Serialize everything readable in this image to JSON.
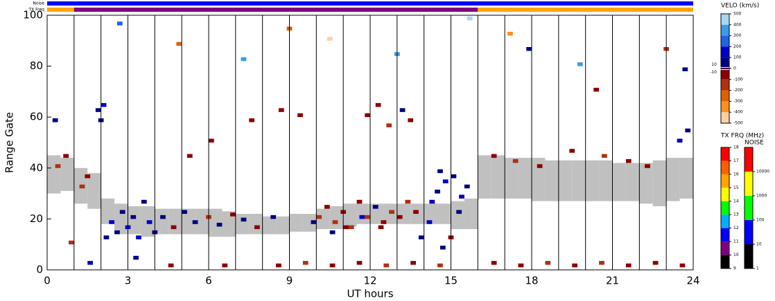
{
  "chart_data": {
    "type": "heatmap",
    "xlabel": "UT hours",
    "ylabel": "Range Gate",
    "xlim": [
      0,
      24
    ],
    "ylim": [
      0,
      100
    ],
    "xticks": [
      0,
      3,
      6,
      9,
      12,
      15,
      18,
      21,
      24
    ],
    "yticks": [
      0,
      20,
      40,
      60,
      80,
      100
    ],
    "xgrid": [
      1,
      2,
      3,
      4,
      5,
      6,
      7,
      8,
      9,
      10,
      11,
      12,
      13,
      14,
      15,
      16,
      17,
      18,
      19,
      20,
      21,
      22,
      23
    ],
    "cells": {
      "x": [
        2.1,
        2.3,
        2.5,
        2.7,
        2.9,
        3.1,
        3.3,
        3.5,
        3.7,
        3.9,
        4.2,
        4.6,
        5.0,
        5.4,
        5.9,
        6.3,
        6.8,
        7.2,
        7.7,
        8.3,
        10.0,
        10.3,
        10.6,
        10.9,
        11.2,
        11.5,
        11.8,
        12.1,
        12.4,
        12.7,
        13.0,
        13.3,
        13.6,
        9.8,
        10.5,
        11.0,
        11.6,
        12.3,
        13.8,
        14.1,
        14.4,
        14.7,
        15.0,
        15.3,
        15.5,
        14.6,
        14.9,
        14.2,
        14.5,
        15.2,
        8.5,
        9.5,
        10.5,
        11.5,
        12.5,
        13.5,
        14.5,
        16.5,
        17.5,
        18.5,
        19.5,
        20.5,
        21.5,
        22.5,
        23.5,
        4.5,
        6.5,
        1.5,
        0.8,
        3.2,
        1.8,
        1.9,
        2.0,
        11.8,
        12.2,
        12.6,
        13.1,
        13.4,
        23.4,
        23.7,
        0.3,
        0.6,
        1.2,
        1.4,
        0.2,
        5.2,
        6.0,
        7.5,
        8.6,
        9.3,
        16.5,
        17.3,
        18.2,
        19.4,
        20.6,
        21.5,
        22.2,
        23.6,
        20.3,
        17.8,
        2.6,
        4.8,
        7.2,
        8.9,
        10.4,
        12.9,
        15.6,
        17.1,
        19.7,
        22.9
      ],
      "y": [
        12,
        18,
        14,
        22,
        16,
        20,
        12,
        26,
        18,
        14,
        20,
        16,
        22,
        18,
        20,
        17,
        21,
        19,
        16,
        20,
        20,
        24,
        18,
        22,
        16,
        26,
        20,
        24,
        18,
        22,
        20,
        26,
        22,
        18,
        14,
        16,
        20,
        16,
        12,
        18,
        30,
        34,
        36,
        28,
        32,
        8,
        12,
        26,
        38,
        22,
        1,
        2,
        1,
        2,
        1,
        2,
        1,
        2,
        1,
        2,
        1,
        2,
        1,
        2,
        1,
        1,
        1,
        2,
        10,
        4,
        62,
        58,
        64,
        60,
        64,
        56,
        62,
        58,
        50,
        54,
        40,
        44,
        32,
        36,
        58,
        44,
        50,
        58,
        62,
        60,
        44,
        42,
        40,
        46,
        44,
        42,
        40,
        78,
        70,
        86,
        96,
        88,
        82,
        94,
        90,
        84,
        98,
        92,
        80,
        86
      ],
      "values": [
        80,
        120,
        60,
        90,
        150,
        70,
        100,
        60,
        110,
        80,
        90,
        -80,
        70,
        60,
        -120,
        80,
        -90,
        70,
        -60,
        80,
        -120,
        -90,
        -150,
        -80,
        -110,
        -100,
        -130,
        80,
        -90,
        -140,
        -100,
        -160,
        -90,
        90,
        60,
        -70,
        100,
        -80,
        70,
        100,
        90,
        120,
        80,
        100,
        70,
        60,
        -80,
        150,
        60,
        90,
        -90,
        -120,
        -100,
        -80,
        -110,
        -90,
        -130,
        -100,
        -80,
        -120,
        -90,
        -110,
        -80,
        -100,
        -70,
        -80,
        -90,
        100,
        -120,
        90,
        80,
        60,
        100,
        -100,
        -80,
        -130,
        80,
        -90,
        120,
        90,
        -110,
        -80,
        -120,
        -90,
        90,
        -80,
        -100,
        -90,
        -70,
        -60,
        -90,
        -110,
        -100,
        -80,
        -120,
        -90,
        -100,
        90,
        -70,
        60,
        250,
        -300,
        350,
        -250,
        -420,
        300,
        450,
        -350,
        380,
        -200
      ]
    },
    "ground_scatter": {
      "color": "#c0c0c0",
      "x": [
        0,
        0.5,
        1,
        1.5,
        2,
        2.5,
        3,
        3.5,
        4,
        4.5,
        5,
        5.5,
        6,
        6.5,
        7,
        7.5,
        8,
        8.5,
        9,
        9.5,
        10,
        10.5,
        11,
        11.5,
        12,
        12.5,
        13,
        13.5,
        14,
        14.5,
        15,
        15.5,
        16,
        16.5,
        17,
        17.5,
        18,
        18.5,
        19,
        19.5,
        20,
        20.5,
        21,
        21.5,
        22,
        22.5,
        23,
        23.5
      ],
      "lo": [
        30,
        31,
        26,
        24,
        18,
        14,
        14,
        13,
        14,
        14,
        14,
        14,
        13,
        13,
        14,
        14,
        14,
        14,
        15,
        15,
        16,
        16,
        17,
        18,
        18,
        18,
        18,
        18,
        18,
        18,
        16,
        16,
        28,
        28,
        28,
        28,
        27,
        27,
        27,
        27,
        27,
        27,
        27,
        27,
        26,
        25,
        27,
        28
      ],
      "hi": [
        45,
        44,
        40,
        38,
        28,
        26,
        25,
        25,
        24,
        24,
        24,
        24,
        24,
        23,
        22,
        22,
        21,
        21,
        22,
        22,
        24,
        25,
        26,
        26,
        26,
        26,
        26,
        26,
        26,
        26,
        27,
        28,
        45,
        45,
        44,
        44,
        44,
        43,
        43,
        43,
        43,
        43,
        42,
        42,
        42,
        43,
        44,
        44
      ]
    },
    "strips": [
      {
        "label": "Noise",
        "bins": [
          0,
          24
        ],
        "values": [
          30
        ]
      },
      {
        "label": "TX Freq",
        "bins": [
          0,
          1,
          16,
          24
        ],
        "values": [
          15.5,
          10.5,
          15.5
        ]
      }
    ],
    "velocity_scale": {
      "title": "VELO (km/s)",
      "ticks": [
        500,
        400,
        300,
        200,
        100,
        0,
        -100,
        -200,
        -300,
        -400,
        -500
      ],
      "inner_ticks": [
        10,
        -10
      ],
      "colors": [
        "#a8d8f0",
        "#3c9be6",
        "#1e64e6",
        "#0000c8",
        "#000080",
        "#8b0000",
        "#b03010",
        "#e06000",
        "#ff9020",
        "#ffd0a0"
      ]
    },
    "freq_scale": {
      "title": "TX FRQ (MHz)",
      "ticks": [
        18,
        17,
        16,
        15,
        14,
        13,
        12,
        11,
        10,
        9
      ],
      "colors": [
        "#ff0000",
        "#ff6000",
        "#ffa500",
        "#ffff00",
        "#00ff00",
        "#00b0ff",
        "#0000ff",
        "#800080",
        "#000000"
      ]
    },
    "noise_scale": {
      "title": "NOISE",
      "lim": [
        1,
        100000
      ],
      "ticks": [
        10000,
        1000,
        100,
        10,
        1
      ],
      "colors": [
        "#ff0000",
        "#ffff00",
        "#00ff00",
        "#0000ff",
        "#000000"
      ]
    }
  }
}
